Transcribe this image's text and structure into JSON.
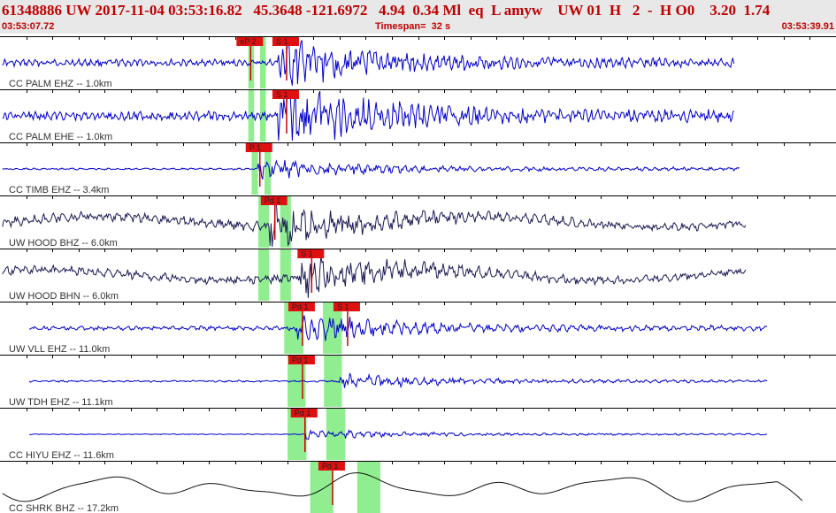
{
  "header": {
    "title": "61348886 UW 2017-11-04 03:53:16.82   45.3648 -121.6972   4.94  0.34 Ml  eq  L amyw    UW 01  H   2  -  H O0    3.20  1.74",
    "start_time": "03:53:07.72",
    "timespan": "Timespan=  32 s",
    "end_time": "03:53:39.91"
  },
  "colors": {
    "header_bg": "#e8e8e8",
    "header_text": "#c00000",
    "trace_blue": "#0000cc",
    "trace_dark": "#1a1a55",
    "trace_black": "#111111",
    "pick_flag": "#e01010",
    "pick_line": "#cc0000",
    "window_green": "#90ee90"
  },
  "channels": [
    {
      "label": "CC PALM EHZ -- 1.0km",
      "color": "blue",
      "amp": 10,
      "noise": 0.9,
      "picks": [
        {
          "label": "eP 2",
          "pos": 0.285
        },
        {
          "label": "S 1",
          "pos": 0.328
        }
      ],
      "green": [
        0.297,
        0.318
      ],
      "onset": 0.333,
      "end": 0.878
    },
    {
      "label": "CC PALM EHE -- 1.0km",
      "color": "blue",
      "amp": 13,
      "noise": 0.9,
      "picks": [
        {
          "label": "S 1",
          "pos": 0.328
        }
      ],
      "green": [
        0.297,
        0.318
      ],
      "onset": 0.333,
      "end": 0.878
    },
    {
      "label": "CC TIMB EHZ -- 3.4km",
      "color": "blue",
      "amp": 4,
      "noise": 0.6,
      "picks": [
        {
          "label": "P 1",
          "pos": 0.296
        }
      ],
      "green": [
        0.301,
        0.324
      ],
      "onset": 0.308,
      "end": 0.885
    },
    {
      "label": "UW HOOD BHZ -- 6.0km",
      "color": "dark",
      "amp": 9,
      "noise": 1.4,
      "picks": [
        {
          "label": "Pd 1",
          "pos": 0.314
        }
      ],
      "green": [
        0.309,
        0.348
      ],
      "onset": 0.318,
      "end": 0.893
    },
    {
      "label": "UW HOOD BHN -- 6.0km",
      "color": "dark",
      "amp": 8,
      "noise": 1.4,
      "picks": [
        {
          "label": "S 1",
          "pos": 0.358
        }
      ],
      "green": [
        0.309,
        0.348
      ],
      "onset": 0.358,
      "end": 0.893
    },
    {
      "label": "UW VLL EHZ -- 11.0km",
      "color": "blue",
      "amp": 6,
      "noise": 0.9,
      "picks": [
        {
          "label": "Pd 1",
          "pos": 0.347
        },
        {
          "label": "S 1",
          "pos": 0.401
        }
      ],
      "green": [
        0.34,
        0.409
      ],
      "onset": 0.352,
      "end": 0.918
    },
    {
      "label": "UW TDH EHZ -- 11.1km",
      "color": "blue",
      "amp": 3,
      "noise": 0.8,
      "picks": [
        {
          "label": "Pd 1",
          "pos": 0.347
        }
      ],
      "green": [
        0.344,
        0.409
      ],
      "onset": 0.405,
      "end": 0.918
    },
    {
      "label": "CC HIYU EHZ -- 11.6km",
      "color": "blue",
      "amp": 2,
      "noise": 0.5,
      "picks": [
        {
          "label": "Pd 1",
          "pos": 0.35
        }
      ],
      "green": [
        0.344,
        0.413
      ],
      "onset": 0.365,
      "end": 0.918
    },
    {
      "label": "CC SHRK BHZ -- 17.2km",
      "color": "black",
      "amp": 0,
      "noise": 0,
      "picks": [
        {
          "label": "Pd 1",
          "pos": 0.383
        }
      ],
      "green": [
        0.371,
        0.455
      ],
      "onset": 0.0,
      "end": 0.96
    }
  ]
}
